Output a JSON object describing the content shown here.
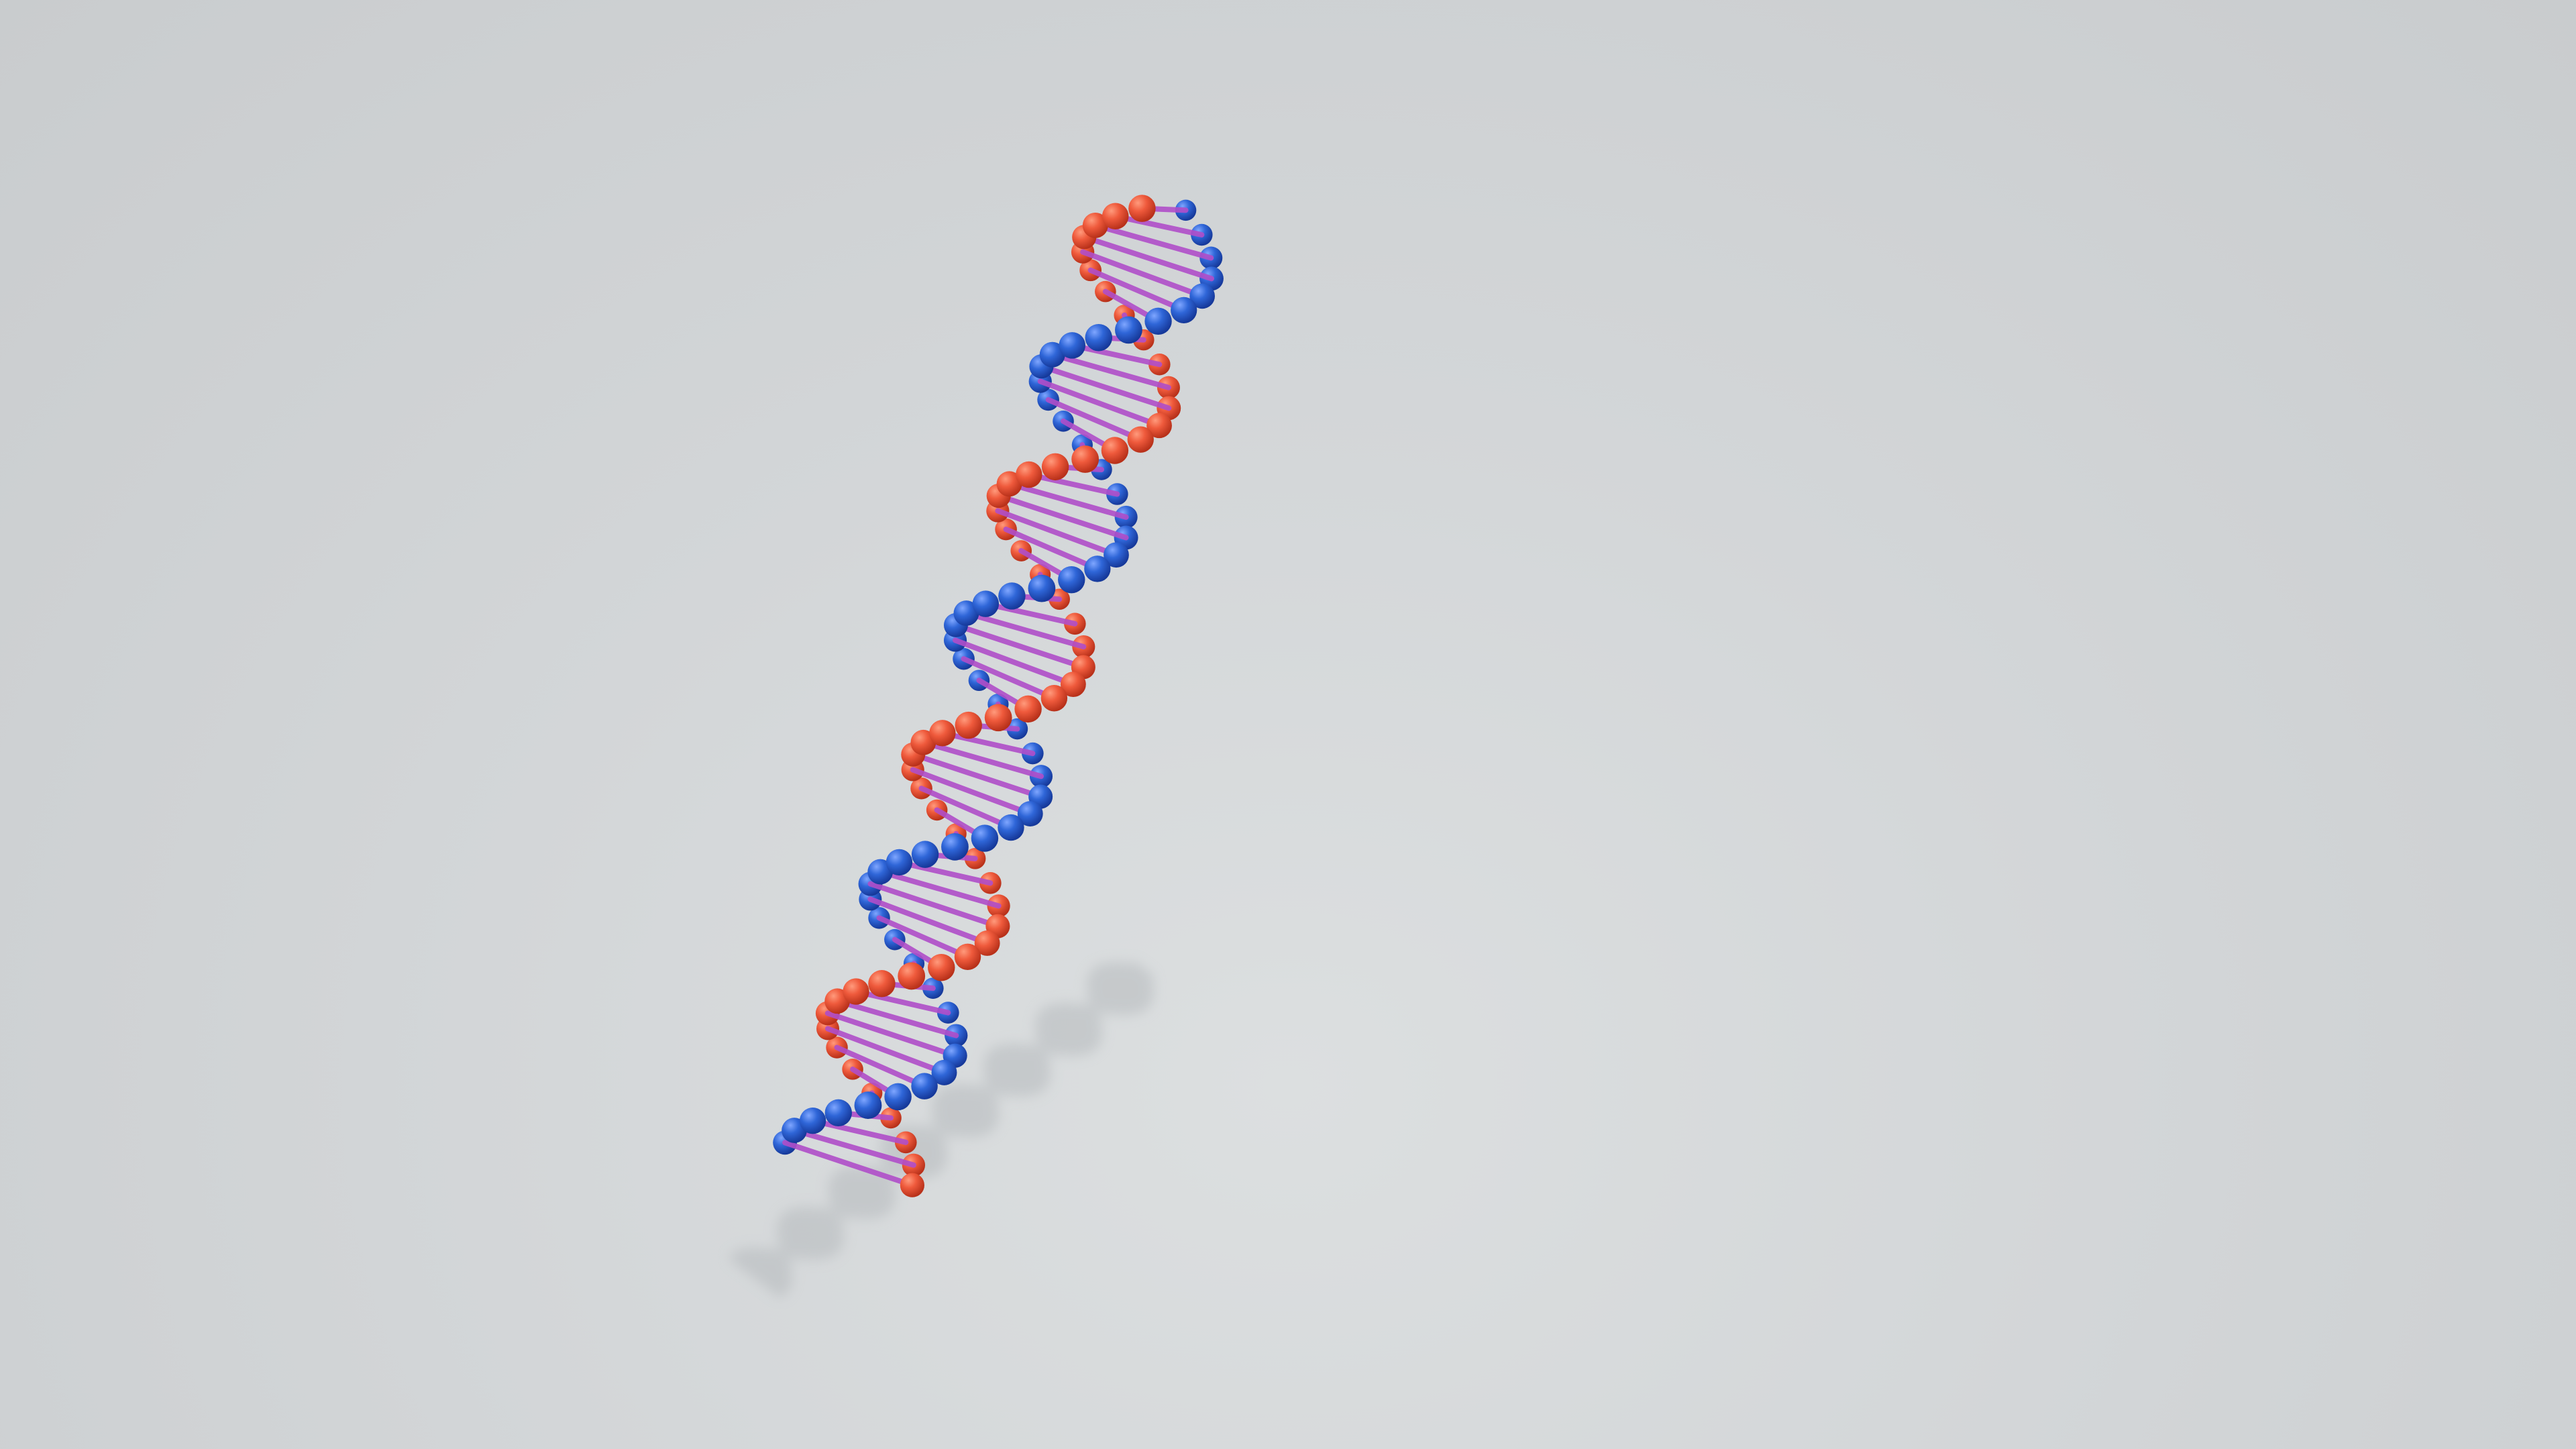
{
  "scene": {
    "subject": "dna-double-helix",
    "colors": {
      "strand_a": "#ef5a3c",
      "strand_a_dark": "#c2361d",
      "strand_b": "#2f66d8",
      "strand_b_dark": "#1c43a8",
      "rung": "#b04ec9",
      "shadow": "#b6babd"
    },
    "helix": {
      "base_pairs": 60,
      "turns": 3.7
    }
  }
}
